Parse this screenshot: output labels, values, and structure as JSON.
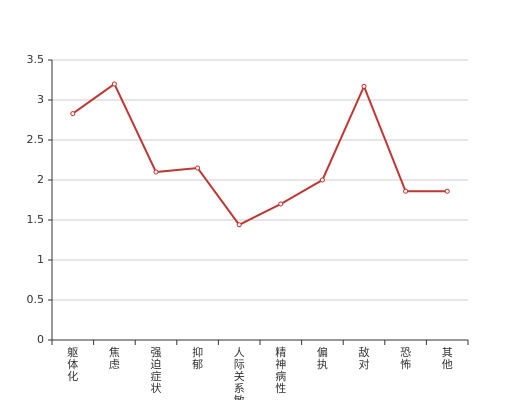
{
  "chart_data": {
    "type": "line",
    "categories": [
      "躯体化",
      "焦虑",
      "强迫症状",
      "抑郁",
      "人际关系敏感",
      "精神病性",
      "偏执",
      "敌对",
      "恐怖",
      "其他"
    ],
    "values": [
      2.83,
      3.2,
      2.1,
      2.15,
      1.44,
      1.7,
      2.0,
      3.17,
      1.86,
      1.86
    ],
    "color": "#c23531",
    "ylim": [
      0,
      3.5
    ],
    "yticks": [
      0,
      0.5,
      1,
      1.5,
      2,
      2.5,
      3,
      3.5
    ],
    "grid": true
  }
}
